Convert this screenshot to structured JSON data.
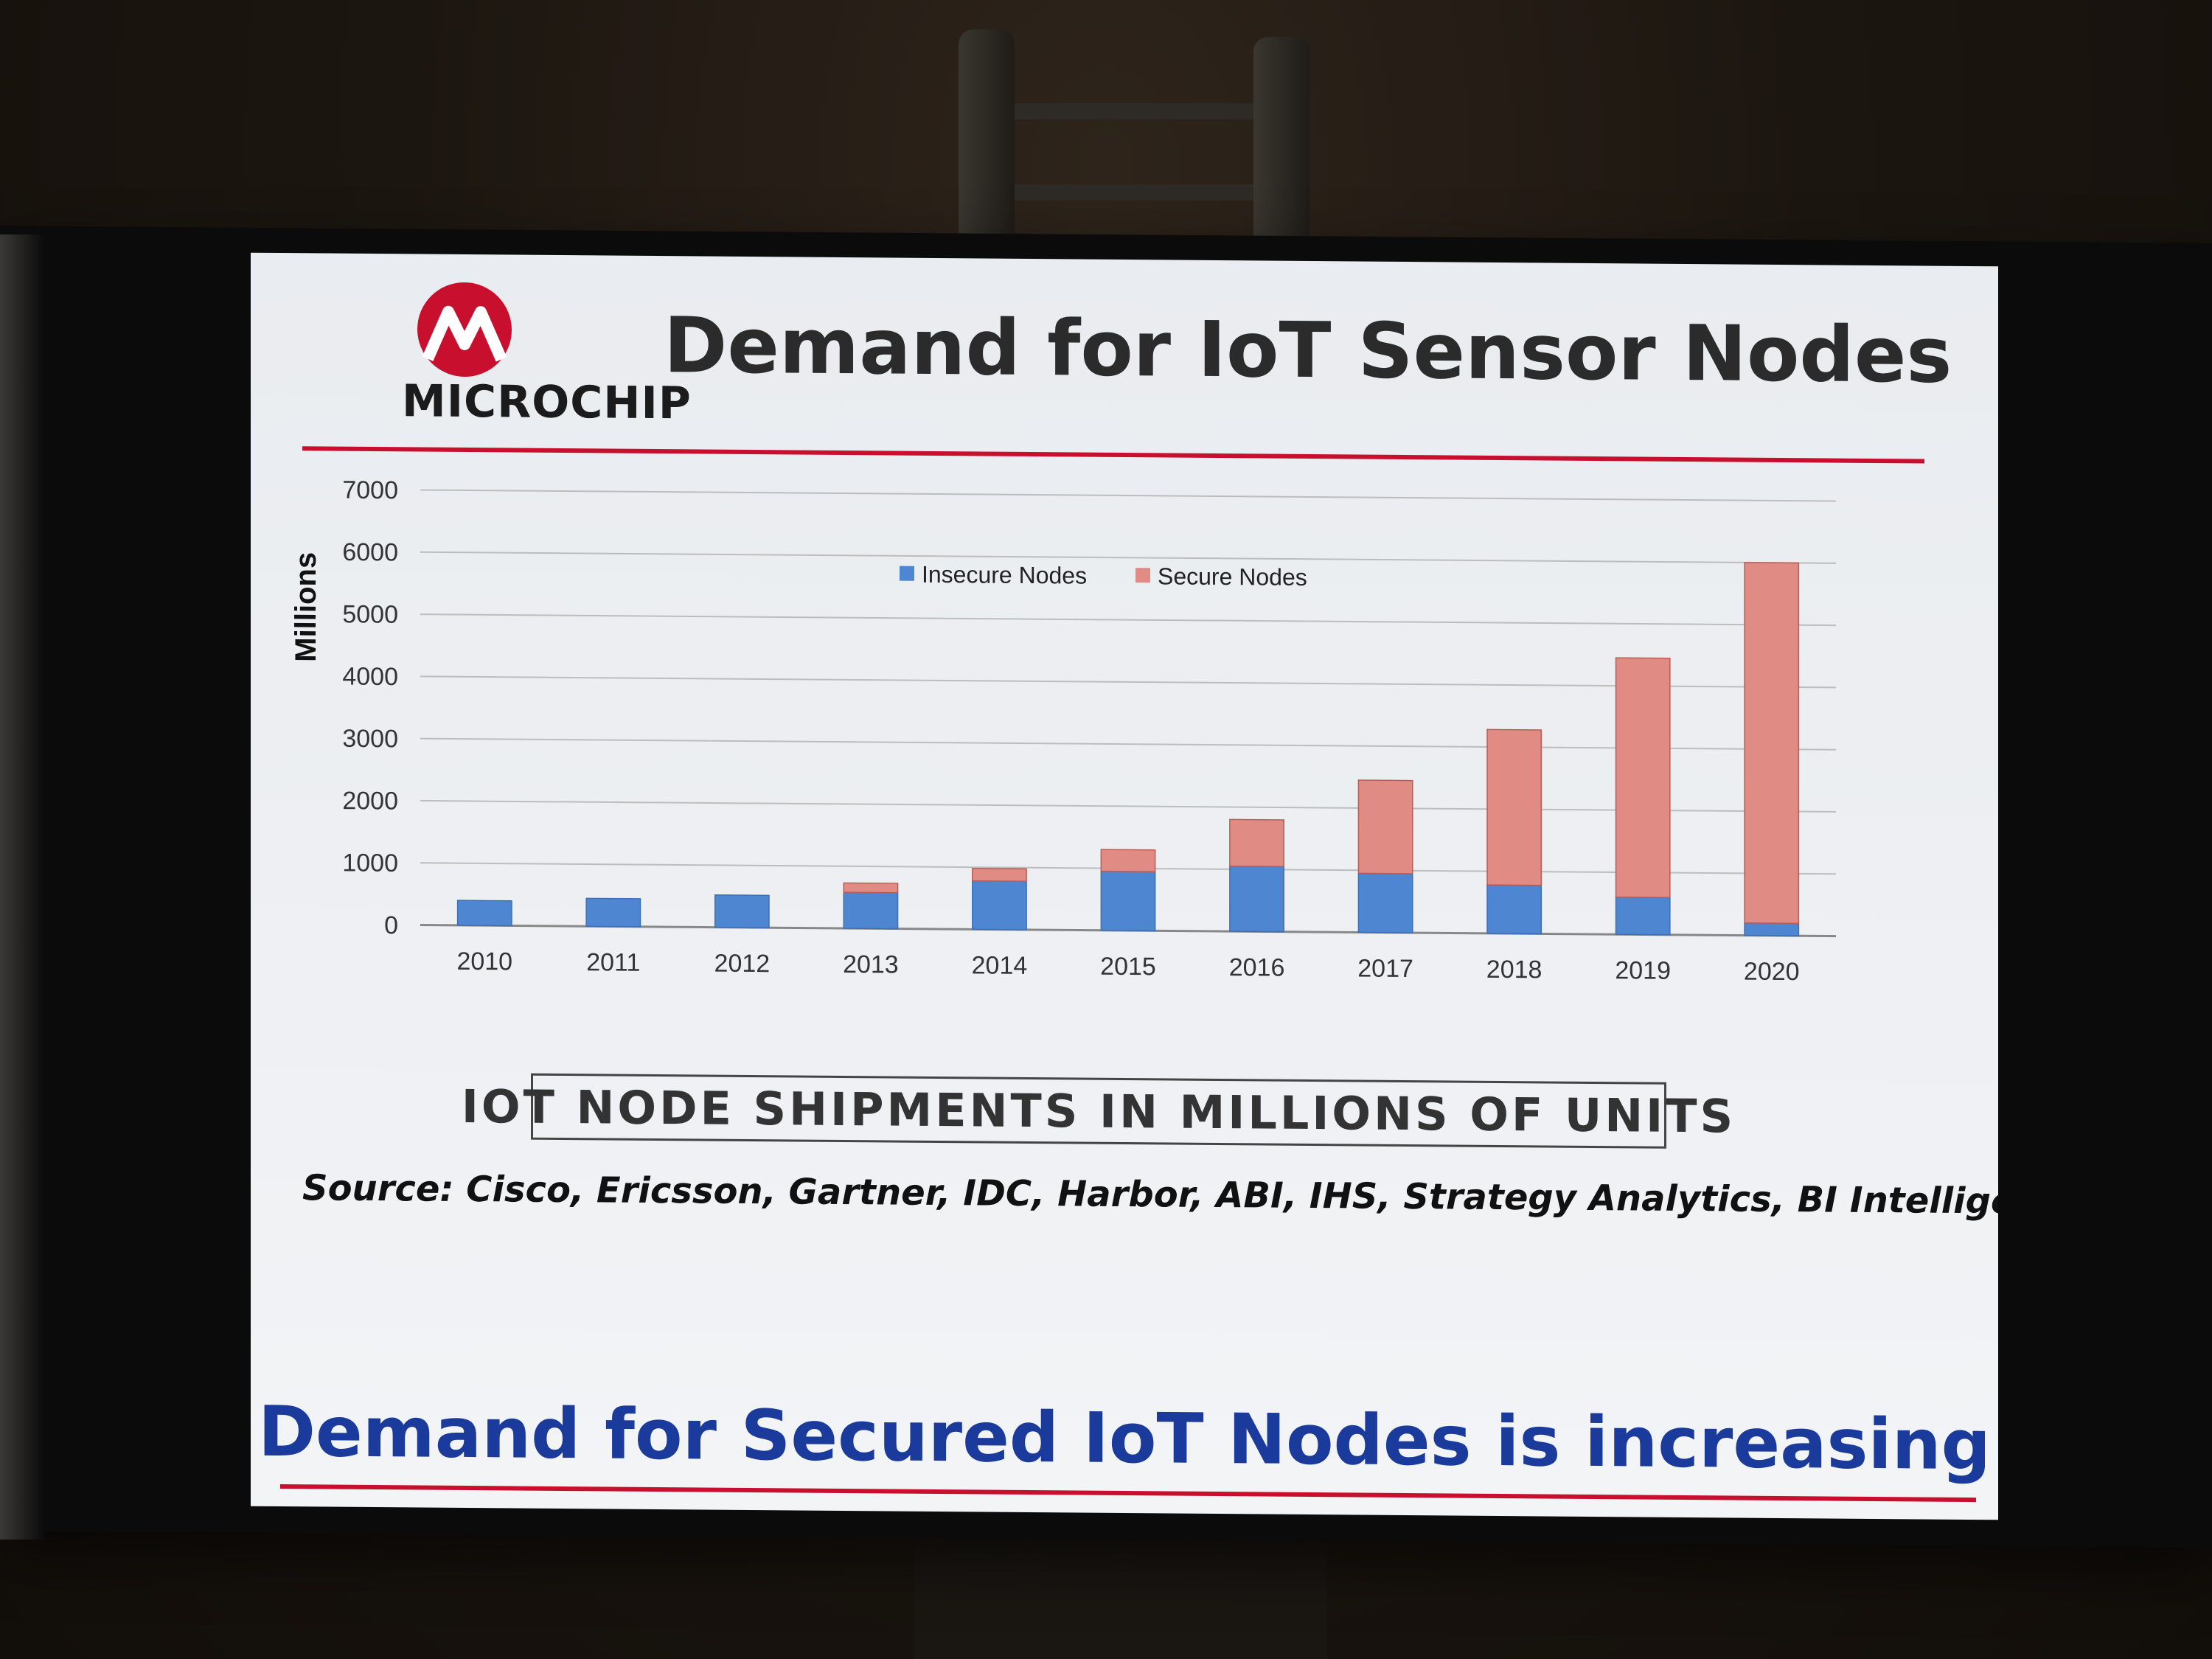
{
  "brand": {
    "name": "MICROCHIP",
    "accent_color": "#c8102e"
  },
  "slide": {
    "title": "Demand for IoT Sensor Nodes",
    "caption": "IOT NODE SHIPMENTS IN MILLIONS OF UNITS",
    "source": "Source: Cisco, Ericsson, Gartner, IDC, Harbor, ABI, IHS, Strategy Analytics, BI Intelligence",
    "tagline": "Demand for Secured IoT Nodes is increasing",
    "tagline_color": "#1a3a9c"
  },
  "chart_data": {
    "type": "bar",
    "stacked": true,
    "categories": [
      "2010",
      "2011",
      "2012",
      "2013",
      "2014",
      "2015",
      "2016",
      "2017",
      "2018",
      "2019",
      "2020"
    ],
    "series": [
      {
        "name": "Insecure Nodes",
        "color": "#4f86d1",
        "values": [
          400,
          450,
          520,
          580,
          780,
          950,
          1050,
          950,
          780,
          600,
          200
        ]
      },
      {
        "name": "Secure Nodes",
        "color": "#e08c84",
        "values": [
          0,
          0,
          0,
          150,
          200,
          350,
          750,
          1500,
          2500,
          3850,
          5800
        ]
      }
    ],
    "ylabel": "Millions",
    "xlabel": "",
    "ylim": [
      0,
      7000
    ],
    "yticks": [
      0,
      1000,
      2000,
      3000,
      4000,
      5000,
      6000,
      7000
    ],
    "grid": true,
    "legend_position": "top-center"
  }
}
